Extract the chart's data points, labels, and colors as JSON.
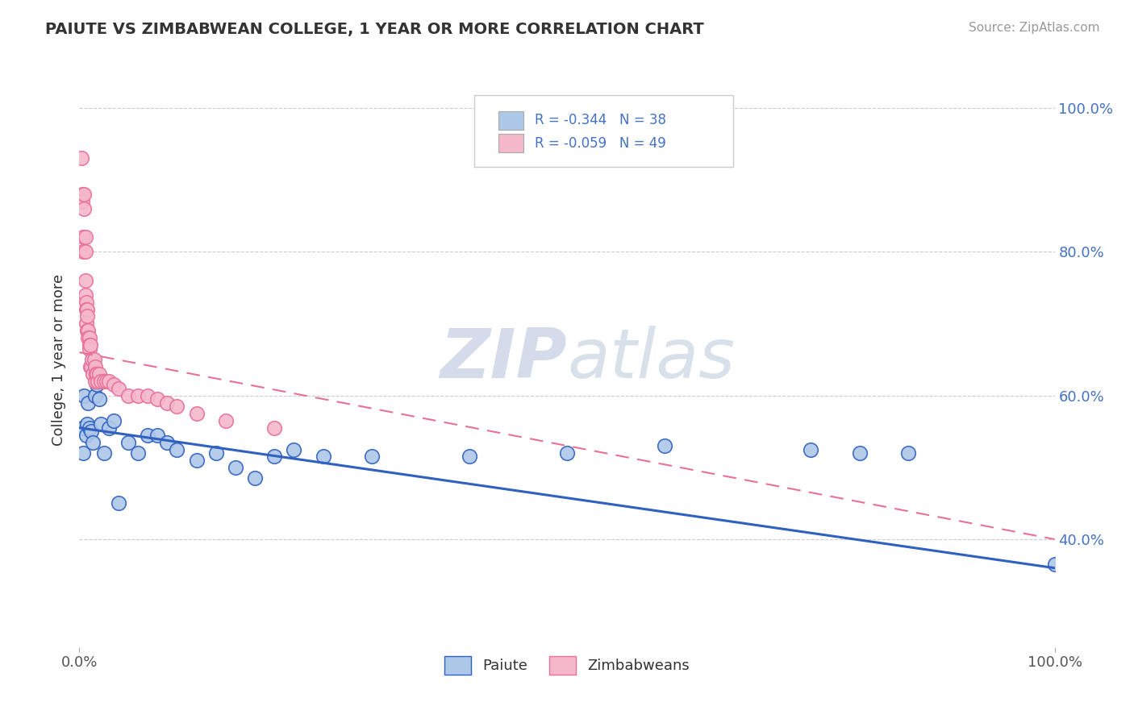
{
  "title": "PAIUTE VS ZIMBABWEAN COLLEGE, 1 YEAR OR MORE CORRELATION CHART",
  "source": "Source: ZipAtlas.com",
  "ylabel": "College, 1 year or more",
  "xlim": [
    0.0,
    1.0
  ],
  "ylim": [
    0.25,
    1.05
  ],
  "x_ticks": [
    0.0,
    1.0
  ],
  "x_tick_labels": [
    "0.0%",
    "100.0%"
  ],
  "y_ticks": [
    0.4,
    0.6,
    0.8,
    1.0
  ],
  "y_tick_labels": [
    "40.0%",
    "60.0%",
    "80.0%",
    "100.0%"
  ],
  "paiute_color": "#adc8e8",
  "zimbabwean_color": "#f5b8cb",
  "paiute_line_color": "#3060c0",
  "zimbabwean_line_color": "#e8709a",
  "legend_text_color": "#4472c4",
  "watermark_zip": "ZIP",
  "watermark_atlas": "atlas",
  "paiute_R": -0.344,
  "paiute_N": 38,
  "zimbabwean_R": -0.059,
  "zimbabwean_N": 49,
  "paiute_x": [
    0.003,
    0.004,
    0.005,
    0.007,
    0.008,
    0.009,
    0.01,
    0.012,
    0.014,
    0.016,
    0.018,
    0.02,
    0.022,
    0.025,
    0.03,
    0.035,
    0.04,
    0.05,
    0.06,
    0.07,
    0.08,
    0.09,
    0.1,
    0.12,
    0.14,
    0.16,
    0.18,
    0.2,
    0.22,
    0.25,
    0.3,
    0.4,
    0.5,
    0.6,
    0.75,
    0.8,
    0.85,
    1.0
  ],
  "paiute_y": [
    0.555,
    0.52,
    0.6,
    0.545,
    0.56,
    0.59,
    0.555,
    0.55,
    0.535,
    0.6,
    0.615,
    0.595,
    0.56,
    0.52,
    0.555,
    0.565,
    0.45,
    0.535,
    0.52,
    0.545,
    0.545,
    0.535,
    0.525,
    0.51,
    0.52,
    0.5,
    0.485,
    0.515,
    0.525,
    0.515,
    0.515,
    0.515,
    0.52,
    0.53,
    0.525,
    0.52,
    0.52,
    0.365
  ],
  "zimbabwean_x": [
    0.002,
    0.003,
    0.003,
    0.004,
    0.004,
    0.005,
    0.005,
    0.006,
    0.006,
    0.006,
    0.006,
    0.007,
    0.007,
    0.007,
    0.008,
    0.008,
    0.008,
    0.009,
    0.009,
    0.01,
    0.01,
    0.01,
    0.011,
    0.011,
    0.012,
    0.013,
    0.014,
    0.015,
    0.016,
    0.016,
    0.017,
    0.018,
    0.019,
    0.02,
    0.022,
    0.025,
    0.028,
    0.03,
    0.035,
    0.04,
    0.05,
    0.06,
    0.07,
    0.08,
    0.09,
    0.1,
    0.12,
    0.15,
    0.2
  ],
  "zimbabwean_y": [
    0.93,
    0.88,
    0.87,
    0.82,
    0.8,
    0.88,
    0.86,
    0.82,
    0.8,
    0.76,
    0.74,
    0.73,
    0.72,
    0.7,
    0.72,
    0.71,
    0.69,
    0.69,
    0.68,
    0.68,
    0.67,
    0.665,
    0.67,
    0.64,
    0.64,
    0.65,
    0.63,
    0.65,
    0.64,
    0.62,
    0.63,
    0.63,
    0.62,
    0.63,
    0.62,
    0.62,
    0.62,
    0.62,
    0.615,
    0.61,
    0.6,
    0.6,
    0.6,
    0.595,
    0.59,
    0.585,
    0.575,
    0.565,
    0.555
  ]
}
